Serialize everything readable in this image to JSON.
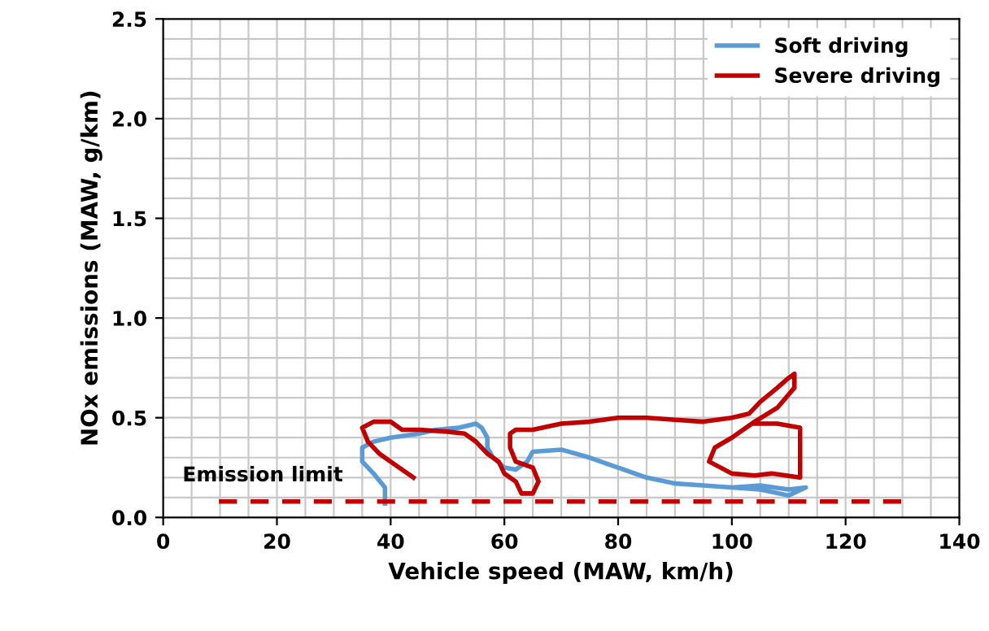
{
  "chart_data": {
    "type": "line",
    "xlabel": "Vehicle speed (MAW, km/h)",
    "ylabel": "NOx emissions (MAW, g/km)",
    "xlim": [
      0,
      140
    ],
    "xticks": [
      0,
      20,
      40,
      60,
      80,
      100,
      120,
      140
    ],
    "ylim": [
      0,
      2.5
    ],
    "yticks": [
      {
        "value": 0,
        "label": "0.0"
      },
      {
        "value": 0.5,
        "label": "0.5"
      },
      {
        "value": 1,
        "label": "1.0"
      },
      {
        "value": 1.5,
        "label": "1.5"
      },
      {
        "value": 2,
        "label": "2.0"
      },
      {
        "value": 2.5,
        "label": "2.5"
      }
    ],
    "grid": true,
    "legend": "top right",
    "line_style": "solid",
    "series": [
      {
        "name": "Soft driving",
        "color": "#5b9bd5",
        "x": [
          39,
          39,
          37,
          35,
          35,
          37,
          40,
          45,
          48,
          52,
          55,
          56,
          57,
          57,
          58,
          60,
          62,
          64,
          65,
          70,
          75,
          80,
          85,
          90,
          95,
          100,
          105,
          110,
          113,
          110,
          105,
          100
        ],
        "values": [
          0.07,
          0.15,
          0.22,
          0.28,
          0.35,
          0.38,
          0.4,
          0.42,
          0.44,
          0.45,
          0.47,
          0.45,
          0.4,
          0.35,
          0.3,
          0.25,
          0.24,
          0.28,
          0.33,
          0.34,
          0.3,
          0.25,
          0.2,
          0.17,
          0.16,
          0.15,
          0.16,
          0.14,
          0.15,
          0.11,
          0.14,
          0.15
        ]
      },
      {
        "name": "Severe driving",
        "color": "#c00000",
        "x": [
          44,
          42,
          40,
          38,
          36,
          35,
          37,
          40,
          42,
          45,
          50,
          53,
          55,
          57,
          59,
          60,
          62,
          63,
          65,
          66,
          65,
          62,
          61,
          61,
          62,
          65,
          70,
          75,
          80,
          85,
          90,
          95,
          100,
          103,
          105,
          108,
          110,
          111,
          111,
          108,
          104,
          100,
          97,
          96,
          100,
          104,
          107,
          112,
          112,
          108,
          104
        ],
        "values": [
          0.2,
          0.24,
          0.28,
          0.32,
          0.38,
          0.45,
          0.48,
          0.48,
          0.44,
          0.44,
          0.43,
          0.42,
          0.38,
          0.32,
          0.28,
          0.22,
          0.18,
          0.12,
          0.12,
          0.18,
          0.25,
          0.28,
          0.35,
          0.42,
          0.44,
          0.44,
          0.47,
          0.48,
          0.5,
          0.5,
          0.49,
          0.48,
          0.5,
          0.52,
          0.58,
          0.65,
          0.7,
          0.72,
          0.65,
          0.55,
          0.48,
          0.4,
          0.35,
          0.28,
          0.22,
          0.21,
          0.22,
          0.2,
          0.45,
          0.47,
          0.47
        ]
      }
    ],
    "ref_lines": [
      {
        "axis": "y",
        "value": 0.08,
        "label": "Emission limit",
        "color": "#c00000",
        "line_style": "dashed"
      }
    ]
  }
}
